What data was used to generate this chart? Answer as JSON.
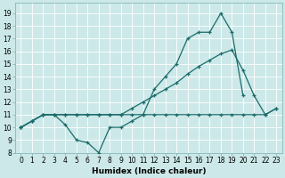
{
  "xlabel": "Humidex (Indice chaleur)",
  "bg_color": "#cce8e8",
  "line_color": "#1a6b6b",
  "grid_color": "#ffffff",
  "xlim": [
    -0.5,
    23.5
  ],
  "ylim": [
    8,
    19.8
  ],
  "xticks": [
    0,
    1,
    2,
    3,
    4,
    5,
    6,
    7,
    8,
    9,
    10,
    11,
    12,
    13,
    14,
    15,
    16,
    17,
    18,
    19,
    20,
    21,
    22,
    23
  ],
  "yticks": [
    8,
    9,
    10,
    11,
    12,
    13,
    14,
    15,
    16,
    17,
    18,
    19
  ],
  "line1_x": [
    0,
    1,
    2,
    3,
    4,
    5,
    6,
    7,
    8,
    9,
    10,
    11,
    12,
    13,
    14,
    15,
    16,
    17,
    18,
    19,
    20
  ],
  "line1_y": [
    10.0,
    10.5,
    11.0,
    11.0,
    10.2,
    9.0,
    8.8,
    8.0,
    10.0,
    10.0,
    10.5,
    11.0,
    13.0,
    14.0,
    15.0,
    17.0,
    17.5,
    17.5,
    19.0,
    17.5,
    12.5
  ],
  "line2_x": [
    0,
    1,
    2,
    3,
    4,
    5,
    6,
    7,
    8,
    9,
    10,
    11,
    12,
    13,
    14,
    15,
    16,
    17,
    18,
    19,
    20,
    21,
    22,
    23
  ],
  "line2_y": [
    10.0,
    10.5,
    11.0,
    11.0,
    11.0,
    11.0,
    11.0,
    11.0,
    11.0,
    11.0,
    11.5,
    12.0,
    12.5,
    13.0,
    13.5,
    14.2,
    14.8,
    15.3,
    15.8,
    16.1,
    14.5,
    12.5,
    11.0,
    11.5
  ],
  "line3_x": [
    0,
    1,
    2,
    3,
    4,
    5,
    6,
    7,
    8,
    9,
    10,
    11,
    12,
    13,
    14,
    15,
    16,
    17,
    18,
    19,
    20,
    21,
    22,
    23
  ],
  "line3_y": [
    10.0,
    10.5,
    11.0,
    11.0,
    11.0,
    11.0,
    11.0,
    11.0,
    11.0,
    11.0,
    11.0,
    11.0,
    11.0,
    11.0,
    11.0,
    11.0,
    11.0,
    11.0,
    11.0,
    11.0,
    11.0,
    11.0,
    11.0,
    11.5
  ],
  "markersize": 3.5,
  "linewidth": 0.9,
  "tick_fontsize": 5.5,
  "xlabel_fontsize": 6.5
}
